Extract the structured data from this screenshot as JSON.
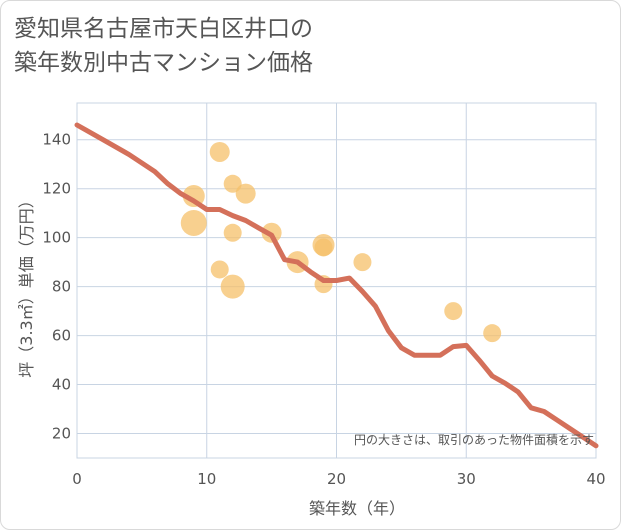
{
  "title_line1": "愛知県名古屋市天白区井口の",
  "title_line2": "築年数別中古マンション価格",
  "chart_data": {
    "type": "scatter",
    "xlabel": "築年数（年）",
    "ylabel": "坪（3.3㎡）単価（万円）",
    "xlim": [
      0,
      40
    ],
    "ylim": [
      10,
      155
    ],
    "xticks": [
      0,
      10,
      20,
      30,
      40
    ],
    "yticks": [
      20,
      40,
      60,
      80,
      100,
      120,
      140
    ],
    "note": "円の大きさは、取引のあった物件面積を示す",
    "colors": {
      "points": "#f5c06a",
      "line": "#d4705a",
      "grid": "#c8d4e3"
    },
    "points": [
      {
        "x": 9,
        "y": 117,
        "size": 11
      },
      {
        "x": 9,
        "y": 106,
        "size": 13
      },
      {
        "x": 11,
        "y": 135,
        "size": 10
      },
      {
        "x": 11,
        "y": 87,
        "size": 9
      },
      {
        "x": 12,
        "y": 122,
        "size": 9
      },
      {
        "x": 12,
        "y": 102,
        "size": 9
      },
      {
        "x": 12,
        "y": 80,
        "size": 12
      },
      {
        "x": 13,
        "y": 118,
        "size": 10
      },
      {
        "x": 15,
        "y": 102,
        "size": 10
      },
      {
        "x": 17,
        "y": 90,
        "size": 11
      },
      {
        "x": 19,
        "y": 97,
        "size": 11
      },
      {
        "x": 19,
        "y": 96,
        "size": 9
      },
      {
        "x": 19,
        "y": 81,
        "size": 9
      },
      {
        "x": 22,
        "y": 90,
        "size": 9
      },
      {
        "x": 29,
        "y": 70,
        "size": 9
      },
      {
        "x": 32,
        "y": 61,
        "size": 9
      }
    ],
    "trend": [
      [
        0,
        146
      ],
      [
        2,
        140
      ],
      [
        4,
        134
      ],
      [
        6,
        127
      ],
      [
        7,
        122
      ],
      [
        8,
        118
      ],
      [
        9,
        115
      ],
      [
        10,
        111.5
      ],
      [
        11,
        111.5
      ],
      [
        12,
        109
      ],
      [
        13,
        107
      ],
      [
        14,
        104
      ],
      [
        15,
        101
      ],
      [
        16,
        91
      ],
      [
        17,
        90
      ],
      [
        18,
        86
      ],
      [
        19,
        82.5
      ],
      [
        20,
        82.5
      ],
      [
        21,
        83.5
      ],
      [
        22,
        78
      ],
      [
        23,
        72
      ],
      [
        24,
        62
      ],
      [
        25,
        55
      ],
      [
        26,
        52
      ],
      [
        27,
        52
      ],
      [
        28,
        52
      ],
      [
        29,
        55.5
      ],
      [
        30,
        56
      ],
      [
        31,
        50
      ],
      [
        32,
        43.5
      ],
      [
        33,
        40.5
      ],
      [
        34,
        37
      ],
      [
        35,
        30.5
      ],
      [
        36,
        29
      ],
      [
        37,
        25.5
      ],
      [
        38,
        22
      ],
      [
        39,
        18.5
      ],
      [
        40,
        15
      ]
    ]
  }
}
